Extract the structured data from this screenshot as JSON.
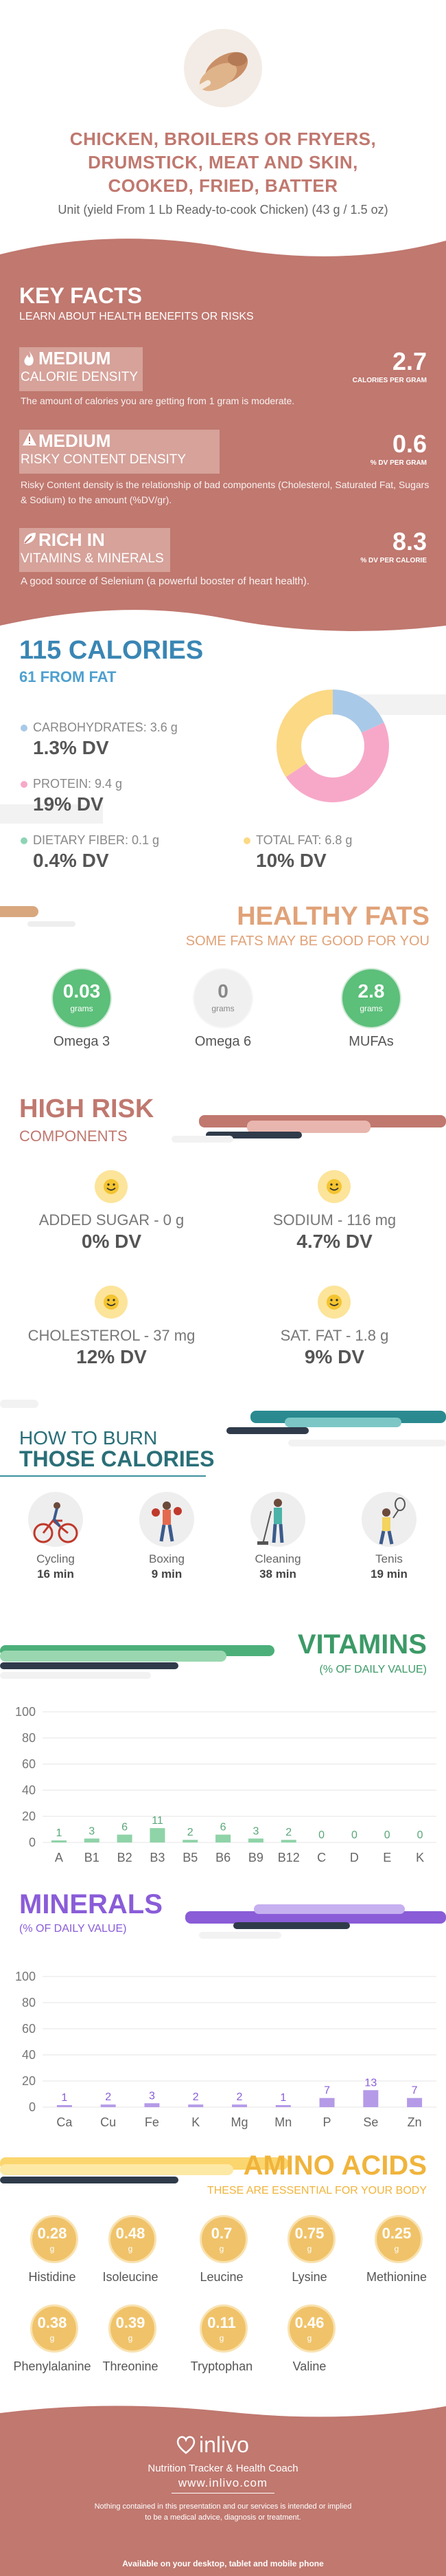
{
  "header": {
    "title_lines": [
      "CHICKEN, BROILERS OR FRYERS,",
      "DRUMSTICK, MEAT AND SKIN,",
      "COOKED, FRIED, BATTER"
    ],
    "unit": "Unit (yield From 1 Lb Ready-to-cook Chicken) (43 g / 1.5 oz)"
  },
  "key_facts": {
    "title": "KEY FACTS",
    "subtitle": "LEARN ABOUT HEALTH BENEFITS OR RISKS",
    "items": [
      {
        "level": "MEDIUM",
        "name": "CALORIE DENSITY",
        "value": "2.7",
        "unit": "CALORIES PER GRAM",
        "desc": "The amount of calories you are getting from 1 gram is moderate."
      },
      {
        "level": "MEDIUM",
        "name": "RISKY CONTENT DENSITY",
        "value": "0.6",
        "unit": "% DV PER GRAM",
        "desc": "Risky Content density is the relationship of bad components (Cholesterol, Saturated Fat, Sugars & Sodium) to the amount (%DV/gr)."
      },
      {
        "level": "RICH  IN",
        "name": "VITAMINS & MINERALS",
        "value": "8.3",
        "unit": "% DV PER CALORIE",
        "desc": "A good source of Selenium (a powerful booster of heart health)."
      }
    ]
  },
  "calories": {
    "title": "115 CALORIES",
    "from_fat": "61 FROM FAT",
    "carbs_label": "CARBOHYDRATES: 3.6 g",
    "carbs_dv": "1.3% DV",
    "protein_label": "PROTEIN: 9.4 g",
    "protein_dv": "19% DV",
    "fiber_label": "DIETARY FIBER: 0.1 g",
    "fiber_dv": "0.4% DV",
    "fat_label": "TOTAL FAT: 6.8 g",
    "fat_dv": "10% DV",
    "colors": {
      "carbs": "#a9c9e8",
      "protein": "#f7a8c8",
      "fiber": "#8fd3b6",
      "fat": "#fbd985"
    }
  },
  "chart_data": [
    {
      "type": "pie",
      "title": "",
      "categories": [
        "Carbohydrates",
        "Protein",
        "Total Fat"
      ],
      "values": [
        3.6,
        9.4,
        6.8
      ]
    },
    {
      "type": "bar",
      "title": "VITAMINS",
      "categories": [
        "A",
        "B1",
        "B2",
        "B3",
        "B5",
        "B6",
        "B9",
        "B12",
        "C",
        "D",
        "E",
        "K"
      ],
      "values": [
        1,
        3,
        6,
        11,
        2,
        6,
        3,
        2,
        0,
        0,
        0,
        0
      ],
      "ylim": [
        0,
        100
      ],
      "yticks": [
        0,
        20,
        40,
        60,
        80,
        100
      ]
    },
    {
      "type": "bar",
      "title": "MINERALS",
      "categories": [
        "Ca",
        "Cu",
        "Fe",
        "K",
        "Mg",
        "Mn",
        "P",
        "Se",
        "Zn"
      ],
      "values": [
        1,
        2,
        3,
        2,
        2,
        1,
        7,
        13,
        7
      ],
      "ylim": [
        0,
        100
      ],
      "yticks": [
        0,
        20,
        40,
        60,
        80,
        100
      ]
    }
  ],
  "healthy_fats": {
    "title": "HEALTHY FATS",
    "subtitle": "SOME FATS MAY BE GOOD FOR YOU",
    "items": [
      {
        "value": "0.03",
        "unit": "grams",
        "name": "Omega 3"
      },
      {
        "value": "0",
        "unit": "grams",
        "name": "Omega 6"
      },
      {
        "value": "2.8",
        "unit": "grams",
        "name": "MUFAs"
      }
    ]
  },
  "high_risk": {
    "title": "HIGH RISK",
    "subtitle": "COMPONENTS",
    "items": [
      {
        "label": "ADDED SUGAR - 0 g",
        "dv": "0% DV"
      },
      {
        "label": "SODIUM - 116 mg",
        "dv": "4.7% DV"
      },
      {
        "label": "CHOLESTEROL - 37 mg",
        "dv": "12% DV"
      },
      {
        "label": "SAT. FAT - 1.8 g",
        "dv": "9% DV"
      }
    ]
  },
  "burn": {
    "title1": "HOW TO BURN",
    "title2": "THOSE CALORIES",
    "items": [
      {
        "name": "Cycling",
        "time": "16 min"
      },
      {
        "name": "Boxing",
        "time": "9 min"
      },
      {
        "name": "Cleaning",
        "time": "38 min"
      },
      {
        "name": "Tenis",
        "time": "19 min"
      }
    ]
  },
  "vitamins": {
    "title": "VITAMINS",
    "subtitle": "(% OF DAILY VALUE)"
  },
  "minerals": {
    "title": "MINERALS",
    "subtitle": "(% OF DAILY VALUE)"
  },
  "amino": {
    "title": "AMINO ACIDS",
    "subtitle": "THESE ARE ESSENTIAL FOR YOUR BODY",
    "unit": "g",
    "items": [
      {
        "value": "0.28",
        "name": "Histidine"
      },
      {
        "value": "0.48",
        "name": "Isoleucine"
      },
      {
        "value": "0.7",
        "name": "Leucine"
      },
      {
        "value": "0.75",
        "name": "Lysine"
      },
      {
        "value": "0.25",
        "name": "Methionine"
      },
      {
        "value": "0.38",
        "name": "Phenylalanine"
      },
      {
        "value": "0.39",
        "name": "Threonine"
      },
      {
        "value": "0.11",
        "name": "Tryptophan"
      },
      {
        "value": "0.46",
        "name": "Valine"
      }
    ]
  },
  "footer": {
    "brand": "inlivo",
    "tagline": "Nutrition Tracker & Health Coach",
    "url": "www.inlivo.com",
    "disclaimer1": "Nothing contained in this presentation and our services is intended or implied",
    "disclaimer2": "to be a medical advice, diagnosis or treatment.",
    "available": "Available on your desktop, tablet and mobile phone"
  }
}
